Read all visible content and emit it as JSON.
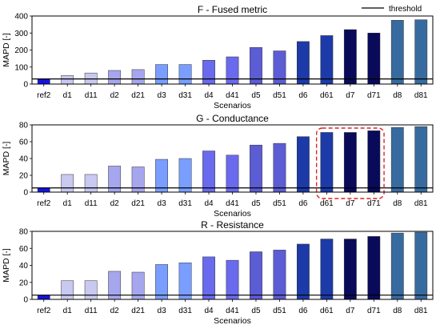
{
  "legend": {
    "label": "threshold",
    "placement": "top-right"
  },
  "colors": {
    "ref2": "#1414e0",
    "d1": "#c8c8f0",
    "d11": "#c8c8f0",
    "d2": "#a6a6ee",
    "d21": "#a6a6ee",
    "d3": "#7a9eff",
    "d31": "#7a9eff",
    "d4": "#6a6aee",
    "d41": "#6a6aee",
    "d5": "#5c5cd4",
    "d51": "#5c5cd4",
    "d6": "#1c3aa8",
    "d61": "#1c3aa8",
    "d7": "#0a0a5a",
    "d71": "#0a0a5a",
    "d8": "#376ba0",
    "d81": "#376ba0",
    "highlight": "#e0202a",
    "threshold": "#000000"
  },
  "chart_data": [
    {
      "type": "bar",
      "title": "F - Fused metric",
      "xlabel": "Scenarios",
      "ylabel": "MAPD [-]",
      "ylim": [
        0,
        400
      ],
      "yticks": [
        0,
        100,
        200,
        300,
        400
      ],
      "categories": [
        "ref2",
        "d1",
        "d11",
        "d2",
        "d21",
        "d3",
        "d31",
        "d4",
        "d41",
        "d5",
        "d51",
        "d6",
        "d61",
        "d7",
        "d71",
        "d8",
        "d81"
      ],
      "values": [
        30,
        50,
        65,
        80,
        85,
        115,
        115,
        140,
        160,
        215,
        195,
        250,
        285,
        320,
        300,
        375,
        378
      ],
      "threshold": 30,
      "grid": false
    },
    {
      "type": "bar",
      "title": "G - Conductance",
      "xlabel": "Scenarios",
      "ylabel": "MAPD [-]",
      "ylim": [
        0,
        80
      ],
      "yticks": [
        0,
        20,
        40,
        60,
        80
      ],
      "categories": [
        "ref2",
        "d1",
        "d11",
        "d2",
        "d21",
        "d3",
        "d31",
        "d4",
        "d41",
        "d5",
        "d51",
        "d6",
        "d61",
        "d7",
        "d71",
        "d8",
        "d81"
      ],
      "values": [
        5,
        21,
        21,
        31,
        30,
        39,
        40,
        49,
        44,
        56,
        58,
        66,
        71,
        71,
        73,
        77,
        78
      ],
      "threshold": 5,
      "highlighted_categories": [
        "d61",
        "d7",
        "d71"
      ],
      "grid": false
    },
    {
      "type": "bar",
      "title": "R - Resistance",
      "xlabel": "Scenarios",
      "ylabel": "MAPD [-]",
      "ylim": [
        0,
        80
      ],
      "yticks": [
        0,
        20,
        40,
        60,
        80
      ],
      "categories": [
        "ref2",
        "d1",
        "d11",
        "d2",
        "d21",
        "d3",
        "d31",
        "d4",
        "d41",
        "d5",
        "d51",
        "d6",
        "d61",
        "d7",
        "d71",
        "d8",
        "d81"
      ],
      "values": [
        5,
        22,
        22,
        33,
        32,
        41,
        43,
        50,
        46,
        56,
        58,
        65,
        71,
        71,
        74,
        78,
        79
      ],
      "threshold": 5,
      "grid": false
    }
  ]
}
